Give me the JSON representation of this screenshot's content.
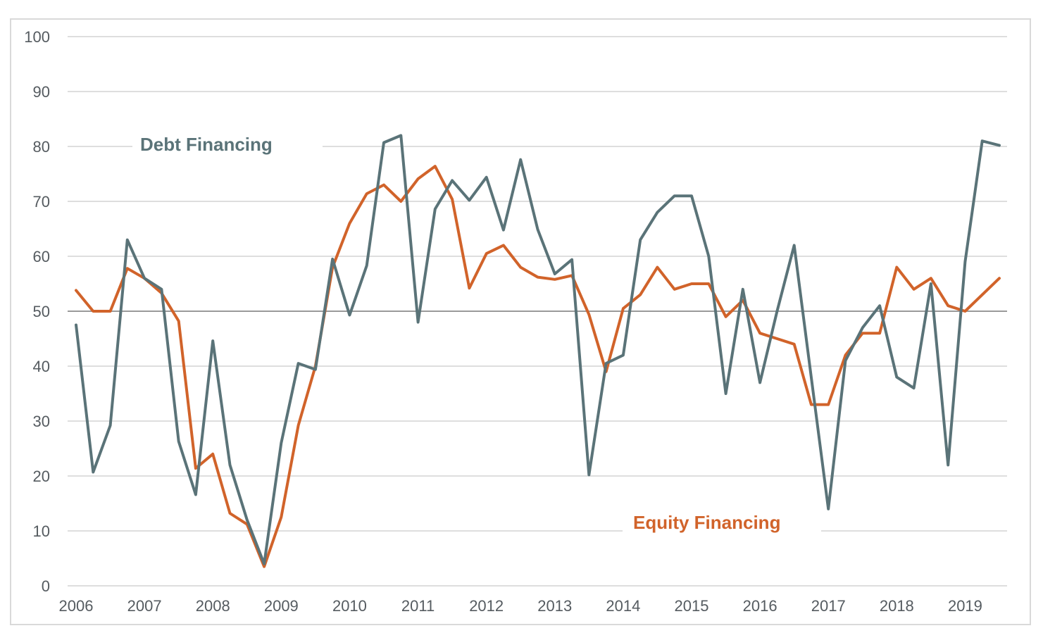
{
  "chart_data": {
    "type": "line",
    "title": "",
    "xlabel": "",
    "ylabel": "",
    "ylim": [
      0,
      100
    ],
    "yticks": [
      "0",
      "10",
      "20",
      "30",
      "40",
      "50",
      "60",
      "70",
      "80",
      "90",
      "100"
    ],
    "reference_line": 50,
    "x_start": 2006,
    "x_step": 0.25,
    "xticks": [
      "2006",
      "2007",
      "2008",
      "2009",
      "2010",
      "2011",
      "2012",
      "2013",
      "2014",
      "2015",
      "2016",
      "2017",
      "2018",
      "2019"
    ],
    "series": [
      {
        "name": "Debt Financing",
        "color": "#5a7378",
        "values": [
          47.5,
          20.7,
          29.2,
          63.0,
          56.0,
          54.0,
          26.3,
          16.6,
          44.6,
          22.0,
          12.0,
          4.0,
          26.0,
          40.5,
          39.4,
          59.5,
          49.3,
          58.3,
          80.7,
          82.0,
          48.0,
          68.6,
          73.8,
          70.2,
          74.4,
          64.8,
          77.6,
          64.9,
          56.8,
          59.4,
          20.2,
          40.5,
          42.0,
          63.0,
          68.0,
          71.0,
          71.0,
          60.0,
          35.0,
          54.0,
          37.0,
          50.0,
          62.0,
          38.0,
          14.0,
          41.0,
          47.0,
          51.0,
          38.0,
          36.0,
          55.0,
          22.0,
          59.0,
          81.0,
          80.2
        ]
      },
      {
        "name": "Equity Financing",
        "color": "#d1632a",
        "values": [
          53.8,
          50.0,
          50.0,
          57.8,
          56.0,
          53.3,
          48.2,
          21.4,
          24.0,
          13.2,
          11.2,
          3.5,
          12.5,
          29.2,
          40.0,
          58.0,
          66.0,
          71.4,
          73.0,
          70.0,
          74.1,
          76.4,
          70.4,
          54.2,
          60.5,
          62.0,
          58.0,
          56.2,
          55.8,
          56.5,
          49.4,
          39.0,
          50.5,
          53.0,
          58.0,
          54.0,
          55.0,
          55.0,
          49.0,
          52.0,
          46.0,
          45.0,
          44.0,
          33.0,
          33.0,
          42.0,
          46.0,
          46.0,
          58.0,
          54.0,
          56.0,
          51.0,
          50.0,
          53.0,
          56.0
        ]
      }
    ],
    "annotations": [
      {
        "text": "Debt Financing",
        "series": "Debt Financing"
      },
      {
        "text": "Equity Financing",
        "series": "Equity Financing"
      }
    ]
  }
}
